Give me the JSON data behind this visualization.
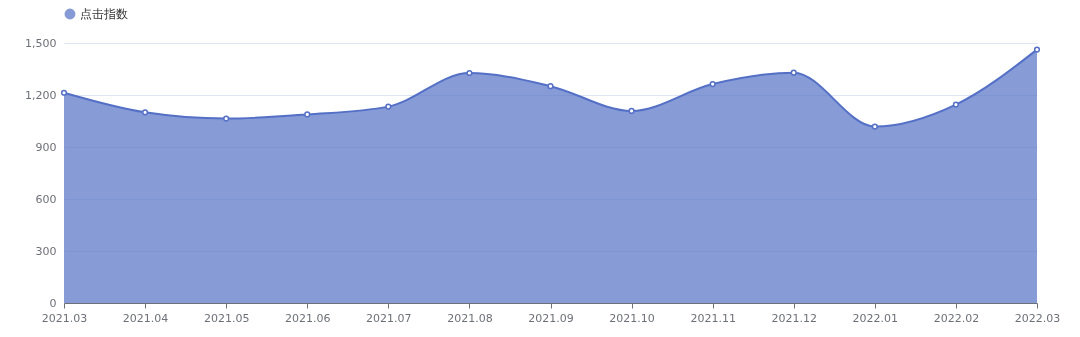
{
  "chart_data": {
    "type": "area",
    "categories": [
      "2021.03",
      "2021.04",
      "2021.05",
      "2021.06",
      "2021.07",
      "2021.08",
      "2021.09",
      "2021.10",
      "2021.11",
      "2021.12",
      "2022.01",
      "2022.02",
      "2022.03"
    ],
    "series": [
      {
        "name": "点击指数",
        "color": "#5470c6",
        "values": [
          1213,
          1100,
          1064,
          1088,
          1133,
          1327,
          1251,
          1108,
          1263,
          1329,
          1018,
          1145,
          1462
        ]
      }
    ],
    "ylim": [
      0,
      1500
    ],
    "yticks": [
      0,
      300,
      600,
      900,
      {
        "value": 1200,
        "label": "1,200"
      },
      {
        "value": 1500,
        "label": "1,500"
      }
    ],
    "grid": "y",
    "legend": "top",
    "marker": "circle"
  }
}
